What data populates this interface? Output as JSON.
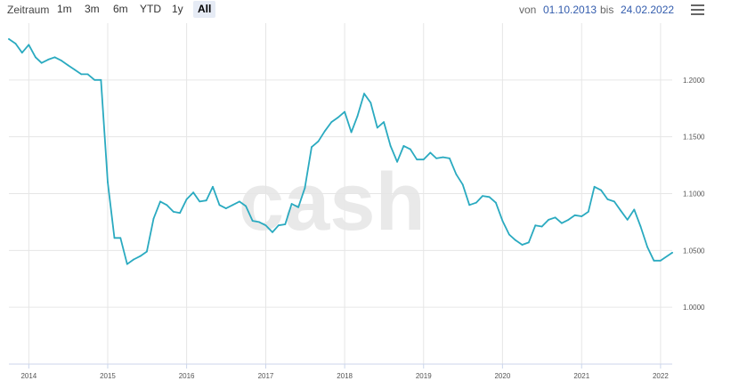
{
  "toolbar": {
    "zoom_label": "Zeitraum",
    "zoom_buttons": [
      "1m",
      "3m",
      "6m",
      "YTD",
      "1y",
      "All"
    ],
    "active_button": "All",
    "from_label": "von",
    "from_date": "01.10.2013",
    "to_label": "bis",
    "to_date": "24.02.2022",
    "menu_icon": "hamburger-menu-icon"
  },
  "watermark": "cash",
  "colors": {
    "line": "#2aaac0",
    "grid": "#e6e6e6",
    "active_button": "#e6ebf5",
    "date_text": "#335cad"
  },
  "chart_data": {
    "type": "line",
    "title": "",
    "xlabel": "",
    "ylabel": "",
    "xlim": [
      "2013-10-01",
      "2022-02-24"
    ],
    "ylim": [
      0.95,
      1.25
    ],
    "x_ticks": [
      "2014",
      "2015",
      "2016",
      "2017",
      "2018",
      "2019",
      "2020",
      "2021",
      "2022"
    ],
    "y_ticks": [
      "1.0000",
      "1.0500",
      "1.1000",
      "1.1500",
      "1.2000"
    ],
    "grid": true,
    "legend": "none",
    "series": [
      {
        "x": [
          "2013-10-01",
          "2013-11-01",
          "2013-12-01",
          "2014-01-01",
          "2014-02-01",
          "2014-03-01",
          "2014-04-01",
          "2014-05-01",
          "2014-06-01",
          "2014-07-01",
          "2014-08-01",
          "2014-09-01",
          "2014-10-01",
          "2014-11-01",
          "2014-12-01",
          "2015-01-01",
          "2015-02-01",
          "2015-03-01",
          "2015-04-01",
          "2015-05-01",
          "2015-06-01",
          "2015-07-01",
          "2015-08-01",
          "2015-09-01",
          "2015-10-01",
          "2015-11-01",
          "2015-12-01",
          "2016-01-01",
          "2016-02-01",
          "2016-03-01",
          "2016-04-01",
          "2016-05-01",
          "2016-06-01",
          "2016-07-01",
          "2016-08-01",
          "2016-09-01",
          "2016-10-01",
          "2016-11-01",
          "2016-12-01",
          "2017-01-01",
          "2017-02-01",
          "2017-03-01",
          "2017-04-01",
          "2017-05-01",
          "2017-06-01",
          "2017-07-01",
          "2017-08-01",
          "2017-09-01",
          "2017-10-01",
          "2017-11-01",
          "2017-12-01",
          "2018-01-01",
          "2018-02-01",
          "2018-03-01",
          "2018-04-01",
          "2018-05-01",
          "2018-06-01",
          "2018-07-01",
          "2018-08-01",
          "2018-09-01",
          "2018-10-01",
          "2018-11-01",
          "2018-12-01",
          "2019-01-01",
          "2019-02-01",
          "2019-03-01",
          "2019-04-01",
          "2019-05-01",
          "2019-06-01",
          "2019-07-01",
          "2019-08-01",
          "2019-09-01",
          "2019-10-01",
          "2019-11-01",
          "2019-12-01",
          "2020-01-01",
          "2020-02-01",
          "2020-03-01",
          "2020-04-01",
          "2020-05-01",
          "2020-06-01",
          "2020-07-01",
          "2020-08-01",
          "2020-09-01",
          "2020-10-01",
          "2020-11-01",
          "2020-12-01",
          "2021-01-01",
          "2021-02-01",
          "2021-03-01",
          "2021-04-01",
          "2021-05-01",
          "2021-06-01",
          "2021-07-01",
          "2021-08-01",
          "2021-09-01",
          "2021-10-01",
          "2021-11-01",
          "2021-12-01",
          "2022-01-01",
          "2022-02-24"
        ],
        "values": [
          1.236,
          1.232,
          1.224,
          1.231,
          1.22,
          1.215,
          1.218,
          1.22,
          1.217,
          1.213,
          1.209,
          1.205,
          1.205,
          1.2,
          1.2,
          1.11,
          1.061,
          1.061,
          1.038,
          1.042,
          1.045,
          1.049,
          1.078,
          1.093,
          1.09,
          1.084,
          1.083,
          1.095,
          1.101,
          1.093,
          1.094,
          1.106,
          1.09,
          1.087,
          1.09,
          1.093,
          1.089,
          1.076,
          1.075,
          1.072,
          1.066,
          1.072,
          1.073,
          1.091,
          1.088,
          1.105,
          1.141,
          1.146,
          1.155,
          1.163,
          1.167,
          1.172,
          1.154,
          1.168,
          1.188,
          1.18,
          1.158,
          1.163,
          1.142,
          1.128,
          1.142,
          1.139,
          1.13,
          1.13,
          1.136,
          1.131,
          1.132,
          1.131,
          1.117,
          1.108,
          1.09,
          1.092,
          1.098,
          1.097,
          1.092,
          1.076,
          1.064,
          1.059,
          1.055,
          1.057,
          1.072,
          1.071,
          1.077,
          1.079,
          1.074,
          1.077,
          1.081,
          1.08,
          1.084,
          1.106,
          1.103,
          1.095,
          1.093,
          1.085,
          1.077,
          1.086,
          1.071,
          1.053,
          1.041,
          1.041,
          1.048
        ]
      }
    ]
  }
}
